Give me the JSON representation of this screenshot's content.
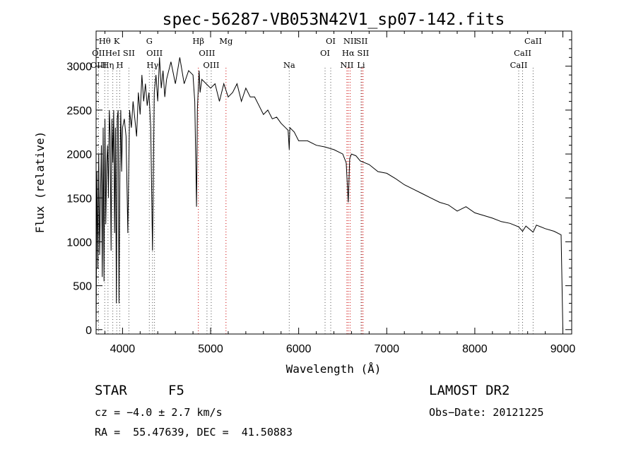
{
  "chart_data": {
    "type": "line",
    "title": "spec-56287-VB053N42V1_sp07-142.fits",
    "xlabel": "Wavelength (Å)",
    "ylabel": "Flux (relative)",
    "xlim": [
      3700,
      9100
    ],
    "ylim": [
      -50,
      3400
    ],
    "x_ticks": [
      4000,
      5000,
      6000,
      7000,
      8000,
      9000
    ],
    "y_ticks": [
      0,
      500,
      1000,
      1500,
      2000,
      2500,
      3000
    ],
    "grid": false,
    "line_color": "#000000",
    "marker_color": "#cc0000",
    "spectrum": {
      "x": [
        3700,
        3710,
        3720,
        3730,
        3740,
        3750,
        3760,
        3770,
        3780,
        3790,
        3800,
        3810,
        3820,
        3830,
        3840,
        3850,
        3860,
        3870,
        3880,
        3890,
        3900,
        3910,
        3920,
        3930,
        3940,
        3950,
        3960,
        3970,
        3980,
        3990,
        4000,
        4020,
        4040,
        4060,
        4080,
        4100,
        4120,
        4140,
        4160,
        4180,
        4200,
        4220,
        4240,
        4260,
        4280,
        4300,
        4320,
        4340,
        4360,
        4380,
        4400,
        4420,
        4440,
        4460,
        4480,
        4500,
        4550,
        4600,
        4650,
        4700,
        4750,
        4800,
        4820,
        4840,
        4850,
        4860,
        4870,
        4880,
        4900,
        4950,
        5000,
        5050,
        5100,
        5150,
        5200,
        5250,
        5300,
        5350,
        5400,
        5450,
        5500,
        5550,
        5600,
        5650,
        5700,
        5750,
        5800,
        5850,
        5880,
        5893,
        5900,
        5950,
        6000,
        6100,
        6200,
        6300,
        6400,
        6500,
        6540,
        6563,
        6580,
        6600,
        6650,
        6700,
        6800,
        6900,
        7000,
        7100,
        7200,
        7300,
        7400,
        7500,
        7600,
        7700,
        7800,
        7900,
        8000,
        8100,
        8200,
        8300,
        8400,
        8498,
        8542,
        8580,
        8662,
        8700,
        8800,
        8900,
        8980,
        9000
      ],
      "y": [
        0,
        1800,
        700,
        2000,
        850,
        1500,
        2100,
        600,
        2300,
        550,
        2400,
        1200,
        1900,
        2100,
        1500,
        2500,
        2200,
        900,
        2400,
        1900,
        2500,
        1100,
        2300,
        300,
        2400,
        2500,
        300,
        1800,
        2500,
        1800,
        2300,
        2400,
        2200,
        1100,
        2500,
        2300,
        2600,
        2400,
        2200,
        2700,
        2450,
        2900,
        2600,
        2800,
        2550,
        2700,
        2300,
        900,
        2700,
        2900,
        2600,
        3100,
        2750,
        2950,
        2650,
        2850,
        3050,
        2800,
        3100,
        2800,
        2950,
        2900,
        2600,
        1400,
        2500,
        2750,
        2950,
        2700,
        2850,
        2800,
        2750,
        2800,
        2600,
        2800,
        2650,
        2700,
        2800,
        2600,
        2750,
        2650,
        2650,
        2550,
        2450,
        2500,
        2400,
        2420,
        2350,
        2300,
        2270,
        2050,
        2300,
        2250,
        2150,
        2150,
        2100,
        2080,
        2050,
        2000,
        1900,
        1450,
        1950,
        2000,
        1980,
        1920,
        1880,
        1800,
        1780,
        1720,
        1650,
        1600,
        1550,
        1500,
        1450,
        1420,
        1350,
        1400,
        1330,
        1300,
        1270,
        1230,
        1210,
        1170,
        1120,
        1180,
        1110,
        1190,
        1150,
        1120,
        1080,
        0
      ]
    },
    "line_markers": [
      {
        "label": "Hθ",
        "x": 3798,
        "row": 0
      },
      {
        "label": "K",
        "x": 3934,
        "row": 0
      },
      {
        "label": "G",
        "x": 4304,
        "row": 0
      },
      {
        "label": "Hβ",
        "x": 4861,
        "row": 0
      },
      {
        "label": "Mg",
        "x": 5175,
        "row": 0
      },
      {
        "label": "OI",
        "x": 6364,
        "row": 0
      },
      {
        "label": "NII",
        "x": 6584,
        "row": 0
      },
      {
        "label": "SII",
        "x": 6717,
        "row": 0
      },
      {
        "label": "CaII",
        "x": 8662,
        "row": 0
      },
      {
        "label": "OII",
        "x": 3727,
        "row": 1
      },
      {
        "label": "HeI",
        "x": 3889,
        "row": 1
      },
      {
        "label": "SII",
        "x": 4072,
        "row": 1
      },
      {
        "label": "OIII",
        "x": 4363,
        "row": 1
      },
      {
        "label": "OIII",
        "x": 4959,
        "row": 1
      },
      {
        "label": "OI",
        "x": 6300,
        "row": 1
      },
      {
        "label": "Hα",
        "x": 6563,
        "row": 1
      },
      {
        "label": "SII",
        "x": 6731,
        "row": 1
      },
      {
        "label": "CaII",
        "x": 8542,
        "row": 1
      },
      {
        "label": "OIII",
        "x": 3727,
        "row": 2
      },
      {
        "label": "Hη",
        "x": 3835,
        "row": 2
      },
      {
        "label": "H",
        "x": 3969,
        "row": 2
      },
      {
        "label": "Hγ",
        "x": 4340,
        "row": 2
      },
      {
        "label": "OIII",
        "x": 5007,
        "row": 2
      },
      {
        "label": "Na",
        "x": 5893,
        "row": 2
      },
      {
        "label": "NII",
        "x": 6548,
        "row": 2
      },
      {
        "label": "Li",
        "x": 6708,
        "row": 2
      },
      {
        "label": "CaII",
        "x": 8498,
        "row": 2
      }
    ],
    "red_line_markers": [
      4102,
      4861,
      5175,
      6548,
      6563,
      6584,
      6717,
      6731
    ]
  },
  "info": {
    "object_class": "STAR",
    "subclass": "F5",
    "survey": "LAMOST DR2",
    "redshift": "cz = −4.0 ± 2.7 km/s",
    "obs_date": "Obs−Date: 20121225",
    "coords": "RA =  55.47639, DEC =  41.50883"
  }
}
